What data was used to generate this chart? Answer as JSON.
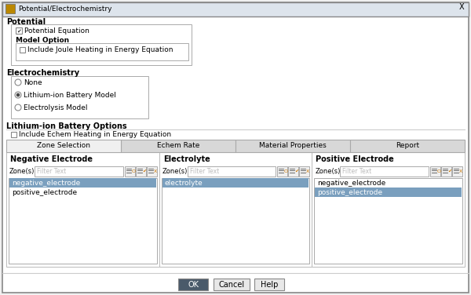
{
  "title": "Potential/Electrochemistry",
  "bg_color": "#f0f0f0",
  "dialog_bg": "#ffffff",
  "highlight_blue": "#7a9fbe",
  "tab_active_bg": "#f0f0f0",
  "tab_inactive_bg": "#d8d8d8",
  "ok_button_bg": "#4a5a6a",
  "ok_button_text": "#ffffff",
  "icon_orange": "#cc7700",
  "sections": {
    "potential": "Potential",
    "model_option": "Model Option",
    "electrochemistry": "Electrochemistry",
    "lithium_battery_options": "Lithium-ion Battery Options"
  },
  "checkboxes": {
    "potential_equation": {
      "label": "Potential Equation",
      "checked": true
    },
    "joule_heating": {
      "label": "Include Joule Heating in Energy Equation",
      "checked": false
    },
    "echem_heating": {
      "label": "Include Echem Heating in Energy Equation",
      "checked": false
    }
  },
  "radio_options": [
    "None",
    "Lithium-ion Battery Model",
    "Electrolysis Model"
  ],
  "radio_selected": 1,
  "tabs": [
    "Zone Selection",
    "Echem Rate",
    "Material Properties",
    "Report"
  ],
  "active_tab": 0,
  "zone_sections": [
    "Negative Electrode",
    "Electrolyte",
    "Positive Electrode"
  ],
  "negative_electrode_items": [
    "negative_electrode",
    "positive_electrode"
  ],
  "negative_electrode_selected": 0,
  "electrolyte_items": [
    "electrolyte"
  ],
  "electrolyte_selected": 0,
  "positive_electrode_items": [
    "negative_electrode",
    "positive_electrode"
  ],
  "positive_electrode_selected": 1,
  "buttons": [
    "OK",
    "Cancel",
    "Help"
  ]
}
